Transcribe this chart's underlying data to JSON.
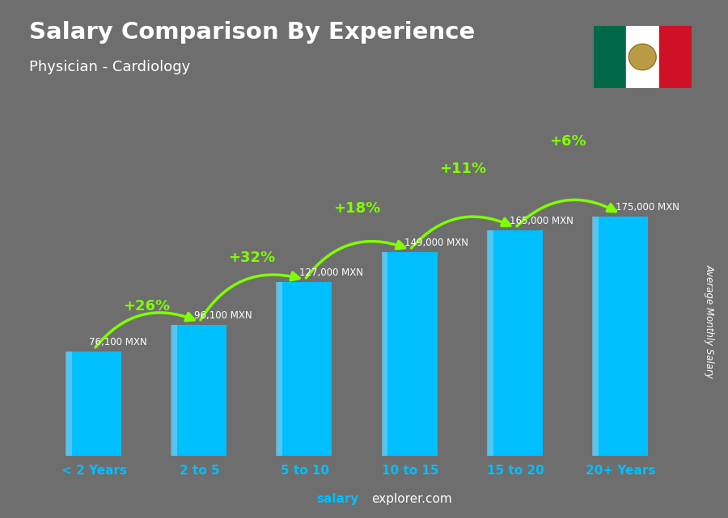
{
  "title": "Salary Comparison By Experience",
  "subtitle": "Physician - Cardiology",
  "categories": [
    "< 2 Years",
    "2 to 5",
    "5 to 10",
    "10 to 15",
    "15 to 20",
    "20+ Years"
  ],
  "values": [
    76100,
    96100,
    127000,
    149000,
    165000,
    175000
  ],
  "labels": [
    "76,100 MXN",
    "96,100 MXN",
    "127,000 MXN",
    "149,000 MXN",
    "165,000 MXN",
    "175,000 MXN"
  ],
  "pct_changes": [
    "+26%",
    "+32%",
    "+18%",
    "+11%",
    "+6%"
  ],
  "bar_color": "#00BFFF",
  "pct_color": "#7FFF00",
  "label_color": "#FFFFFF",
  "title_color": "#FFFFFF",
  "subtitle_color": "#FFFFFF",
  "bg_color": "#6e6e6e",
  "xlabel_color": "#00BFFF",
  "watermark_salary": "salary",
  "watermark_rest": "explorer.com",
  "ylabel": "Average Monthly Salary",
  "ylim": [
    0,
    220000
  ],
  "flag_green": "#006847",
  "flag_white": "#FFFFFF",
  "flag_red": "#CE1126"
}
